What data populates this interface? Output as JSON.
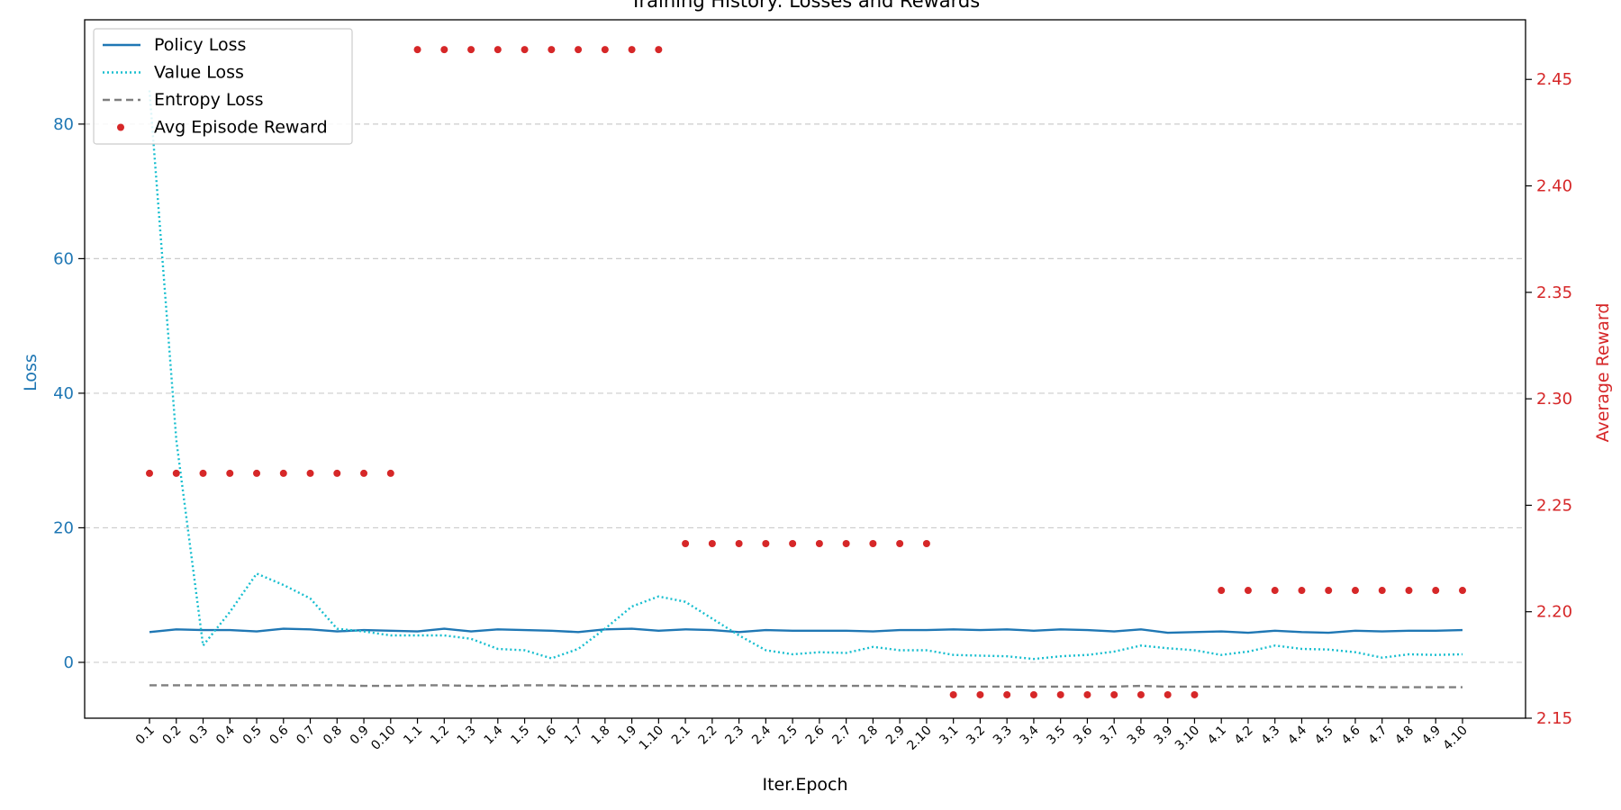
{
  "chart_data": {
    "type": "line",
    "title": "Training History: Losses and Rewards",
    "xlabel": "Iter.Epoch",
    "ylabel_left": "Loss",
    "ylabel_right": "Average Reward",
    "categories": [
      "0.1",
      "0.2",
      "0.3",
      "0.4",
      "0.5",
      "0.6",
      "0.7",
      "0.8",
      "0.9",
      "0.10",
      "1.1",
      "1.2",
      "1.3",
      "1.4",
      "1.5",
      "1.6",
      "1.7",
      "1.8",
      "1.9",
      "1.10",
      "2.1",
      "2.2",
      "2.3",
      "2.4",
      "2.5",
      "2.6",
      "2.7",
      "2.8",
      "2.9",
      "2.10",
      "3.1",
      "3.2",
      "3.3",
      "3.4",
      "3.5",
      "3.6",
      "3.7",
      "3.8",
      "3.9",
      "3.10",
      "4.1",
      "4.2",
      "4.3",
      "4.4",
      "4.5",
      "4.6",
      "4.7",
      "4.8",
      "4.9",
      "4.10"
    ],
    "ylim_left": [
      -8.3,
      95.5
    ],
    "ylim_right": [
      2.15,
      2.478
    ],
    "yticks_left": [
      0,
      20,
      40,
      60,
      80
    ],
    "yticks_right": [
      2.15,
      2.2,
      2.25,
      2.3,
      2.35,
      2.4,
      2.45
    ],
    "grid": true,
    "legend_position": "top-left",
    "colors": {
      "policy": "#1f77b4",
      "value": "#17becf",
      "entropy": "#7f7f7f",
      "reward": "#d62728",
      "grid": "#cccccc",
      "axis": "#000000"
    },
    "series": [
      {
        "name": "Policy Loss",
        "axis": "left",
        "style": "solid",
        "values": [
          4.5,
          4.9,
          4.8,
          4.8,
          4.6,
          5.0,
          4.9,
          4.6,
          4.8,
          4.7,
          4.6,
          5.0,
          4.6,
          4.9,
          4.8,
          4.7,
          4.5,
          4.9,
          5.0,
          4.7,
          4.9,
          4.8,
          4.5,
          4.8,
          4.7,
          4.7,
          4.7,
          4.6,
          4.8,
          4.8,
          4.9,
          4.8,
          4.9,
          4.7,
          4.9,
          4.8,
          4.6,
          4.9,
          4.4,
          4.5,
          4.6,
          4.4,
          4.7,
          4.5,
          4.4,
          4.7,
          4.6,
          4.7,
          4.7,
          4.8
        ]
      },
      {
        "name": "Value Loss",
        "axis": "left",
        "style": "dotted",
        "values": [
          85,
          33,
          2.5,
          7.5,
          13.2,
          11.5,
          9.5,
          5.0,
          4.6,
          4.0,
          4.0,
          4.0,
          3.5,
          2.0,
          1.8,
          0.6,
          2.0,
          5.0,
          8.3,
          9.8,
          9.0,
          6.5,
          4.0,
          1.8,
          1.2,
          1.5,
          1.4,
          2.3,
          1.8,
          1.8,
          1.1,
          1.0,
          0.9,
          0.5,
          0.9,
          1.1,
          1.6,
          2.5,
          2.1,
          1.8,
          1.1,
          1.6,
          2.5,
          2.0,
          1.9,
          1.5,
          0.7,
          1.2,
          1.1,
          1.2
        ]
      },
      {
        "name": "Entropy Loss",
        "axis": "left",
        "style": "dashed",
        "values": [
          -3.4,
          -3.4,
          -3.4,
          -3.4,
          -3.4,
          -3.4,
          -3.4,
          -3.4,
          -3.5,
          -3.5,
          -3.4,
          -3.4,
          -3.5,
          -3.5,
          -3.4,
          -3.4,
          -3.5,
          -3.5,
          -3.5,
          -3.5,
          -3.5,
          -3.5,
          -3.5,
          -3.5,
          -3.5,
          -3.5,
          -3.5,
          -3.5,
          -3.5,
          -3.6,
          -3.6,
          -3.6,
          -3.6,
          -3.6,
          -3.6,
          -3.6,
          -3.6,
          -3.5,
          -3.6,
          -3.6,
          -3.6,
          -3.6,
          -3.6,
          -3.6,
          -3.6,
          -3.6,
          -3.7,
          -3.7,
          -3.7,
          -3.7
        ]
      },
      {
        "name": "Avg Episode Reward",
        "axis": "right",
        "style": "points",
        "values": [
          2.265,
          2.265,
          2.265,
          2.265,
          2.265,
          2.265,
          2.265,
          2.265,
          2.265,
          2.265,
          2.464,
          2.464,
          2.464,
          2.464,
          2.464,
          2.464,
          2.464,
          2.464,
          2.464,
          2.464,
          2.232,
          2.232,
          2.232,
          2.232,
          2.232,
          2.232,
          2.232,
          2.232,
          2.232,
          2.232,
          2.161,
          2.161,
          2.161,
          2.161,
          2.161,
          2.161,
          2.161,
          2.161,
          2.161,
          2.161,
          2.21,
          2.21,
          2.21,
          2.21,
          2.21,
          2.21,
          2.21,
          2.21,
          2.21,
          2.21
        ]
      }
    ]
  }
}
